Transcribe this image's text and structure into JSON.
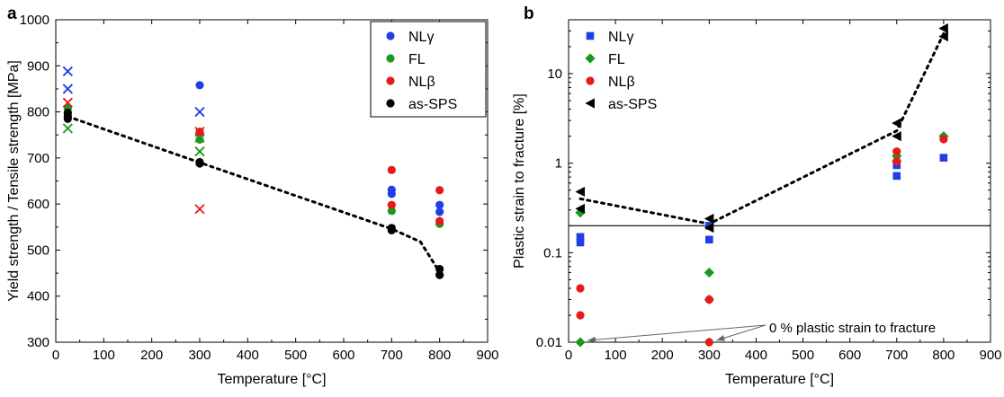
{
  "chart_data": [
    {
      "panel_label": "a",
      "type": "scatter",
      "xlabel": "Temperature [°C]",
      "ylabel": "Yield strength / Tensile strength  [MPa]",
      "xlim": [
        0,
        900
      ],
      "ylim": [
        300,
        1000
      ],
      "xticks": [
        "0",
        "100",
        "200",
        "300",
        "400",
        "500",
        "600",
        "700",
        "800",
        "900"
      ],
      "yticks": [
        "300",
        "400",
        "500",
        "600",
        "700",
        "800",
        "900",
        "1000"
      ],
      "legend_position": "top-right",
      "series": [
        {
          "name": "NLγ",
          "color": "#1f3fe6",
          "marker": "circle",
          "points": [
            [
              300,
              858
            ],
            [
              700,
              631
            ],
            [
              700,
              622
            ],
            [
              800,
              598
            ],
            [
              800,
              583
            ]
          ]
        },
        {
          "name": "NLγ",
          "color": "#1f3fe6",
          "marker": "x",
          "legend": false,
          "points": [
            [
              25,
              888
            ],
            [
              25,
              850
            ],
            [
              300,
              800
            ]
          ]
        },
        {
          "name": "FL",
          "color": "#1a9a1a",
          "marker": "circle",
          "points": [
            [
              25,
              808
            ],
            [
              300,
              740
            ],
            [
              700,
              585
            ],
            [
              800,
              557
            ]
          ]
        },
        {
          "name": "FL",
          "color": "#1a9a1a",
          "marker": "x",
          "legend": false,
          "points": [
            [
              25,
              764
            ],
            [
              300,
              744
            ],
            [
              300,
              714
            ]
          ]
        },
        {
          "name": "NLβ",
          "color": "#e61a1a",
          "marker": "circle",
          "points": [
            [
              300,
              757
            ],
            [
              700,
              674
            ],
            [
              700,
              598
            ],
            [
              800,
              630
            ],
            [
              800,
              563
            ]
          ]
        },
        {
          "name": "NLβ",
          "color": "#e61a1a",
          "marker": "x",
          "legend": false,
          "points": [
            [
              25,
              820
            ],
            [
              300,
              757
            ],
            [
              300,
              589
            ]
          ]
        },
        {
          "name": "as-SPS",
          "color": "#000000",
          "marker": "circle",
          "points": [
            [
              25,
              798
            ],
            [
              25,
              790
            ],
            [
              25,
              785
            ],
            [
              300,
              691
            ],
            [
              300,
              688
            ],
            [
              700,
              548
            ],
            [
              700,
              543
            ],
            [
              800,
              459
            ],
            [
              800,
              446
            ]
          ]
        }
      ],
      "trend_line": {
        "style": "dotted",
        "points": [
          [
            25,
            790
          ],
          [
            300,
            690
          ],
          [
            700,
            546
          ],
          [
            760,
            518
          ],
          [
            800,
            452
          ]
        ]
      }
    },
    {
      "panel_label": "b",
      "type": "scatter",
      "xlabel": "Temperature [°C]",
      "ylabel": "Plastic strain to fracture [%]",
      "xlim": [
        0,
        900
      ],
      "ylim": [
        0.01,
        40
      ],
      "yscale": "log",
      "xticks": [
        "0",
        "100",
        "200",
        "300",
        "400",
        "500",
        "600",
        "700",
        "800",
        "900"
      ],
      "yticks": [
        "0.01",
        "0.1",
        "1",
        "10"
      ],
      "legend_position": "top-left",
      "reference_line": 0.2,
      "series": [
        {
          "name": "NLγ",
          "color": "#1f3fe6",
          "marker": "square",
          "points": [
            [
              25,
              0.15
            ],
            [
              25,
              0.13
            ],
            [
              300,
              0.2
            ],
            [
              300,
              0.14
            ],
            [
              700,
              0.95
            ],
            [
              700,
              0.72
            ],
            [
              800,
              1.15
            ]
          ]
        },
        {
          "name": "FL",
          "color": "#1a9a1a",
          "marker": "diamond",
          "points": [
            [
              25,
              0.28
            ],
            [
              25,
              0.01
            ],
            [
              300,
              0.06
            ],
            [
              300,
              0.03
            ],
            [
              700,
              1.2
            ],
            [
              700,
              1.05
            ],
            [
              800,
              2.0
            ]
          ]
        },
        {
          "name": "NLβ",
          "color": "#e61a1a",
          "marker": "circle",
          "points": [
            [
              25,
              0.04
            ],
            [
              25,
              0.02
            ],
            [
              300,
              0.03
            ],
            [
              300,
              0.01
            ],
            [
              700,
              1.35
            ],
            [
              700,
              1.05
            ],
            [
              800,
              1.85
            ]
          ]
        },
        {
          "name": "as-SPS",
          "color": "#000000",
          "marker": "triangle-left",
          "points": [
            [
              25,
              0.48
            ],
            [
              25,
              0.31
            ],
            [
              300,
              0.24
            ],
            [
              300,
              0.19
            ],
            [
              700,
              2.8
            ],
            [
              700,
              2.0
            ],
            [
              800,
              32
            ],
            [
              800,
              26
            ]
          ]
        }
      ],
      "trend_line": {
        "style": "dotted",
        "points": [
          [
            25,
            0.4
          ],
          [
            300,
            0.21
          ],
          [
            700,
            2.3
          ],
          [
            800,
            28
          ]
        ]
      },
      "annotation": {
        "text": "0 % plastic strain to fracture",
        "targets": [
          [
            25,
            0.01
          ],
          [
            300,
            0.01
          ]
        ]
      }
    }
  ]
}
